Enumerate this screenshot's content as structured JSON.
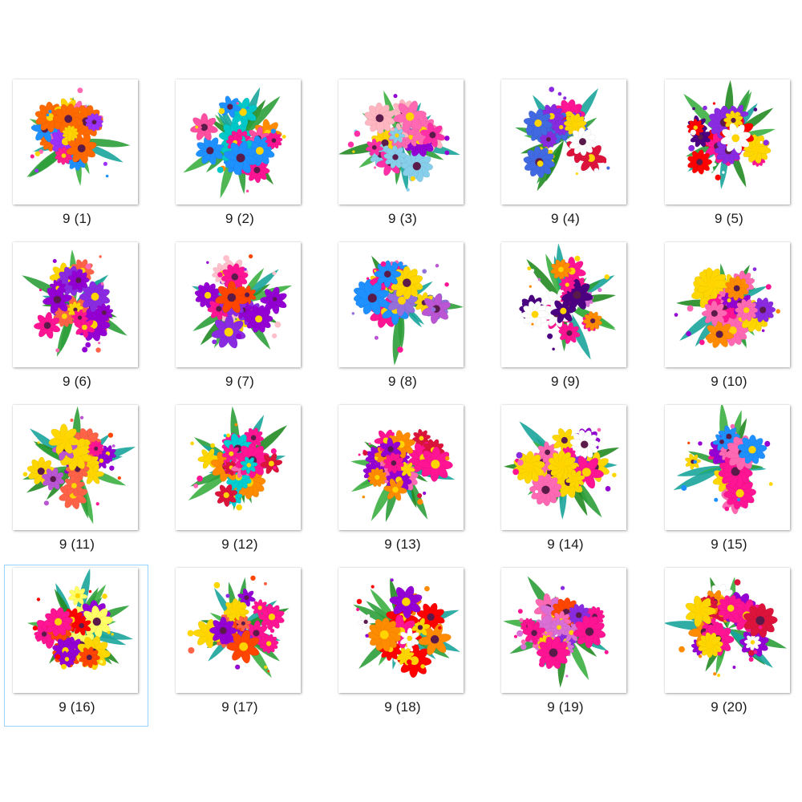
{
  "files": [
    {
      "name": "9 (1)",
      "palette": [
        "#ff1f8e",
        "#ffd400",
        "#1e90ff",
        "#9b30ff",
        "#ff6a00",
        "#ff69b4"
      ]
    },
    {
      "name": "9 (2)",
      "palette": [
        "#ff1493",
        "#ffd700",
        "#1e90ff",
        "#ff8c00",
        "#00c8c8",
        "#ff4fa0"
      ]
    },
    {
      "name": "9 (3)",
      "palette": [
        "#ff2fa8",
        "#ffd400",
        "#87ceeb",
        "#ff69b4",
        "#ffb6c1",
        "#9400d3"
      ]
    },
    {
      "name": "9 (4)",
      "palette": [
        "#8a2be2",
        "#ffd700",
        "#ff1493",
        "#dc143c",
        "#4169e1",
        "#ffffff"
      ]
    },
    {
      "name": "9 (5)",
      "palette": [
        "#ff0000",
        "#ffd700",
        "#8a2be2",
        "#ff1493",
        "#4b0082",
        "#ffffff"
      ]
    },
    {
      "name": "9 (6)",
      "palette": [
        "#9400d3",
        "#ffd700",
        "#ff1493",
        "#ff6347",
        "#8a2be2",
        "#ff69b4"
      ]
    },
    {
      "name": "9 (7)",
      "palette": [
        "#ff1493",
        "#9400d3",
        "#ffd700",
        "#ff4500",
        "#8a2be2",
        "#ffc0cb"
      ]
    },
    {
      "name": "9 (8)",
      "palette": [
        "#ff1493",
        "#ffd700",
        "#1e90ff",
        "#ba55d3",
        "#ff69b4",
        "#9370db"
      ]
    },
    {
      "name": "9 (9)",
      "palette": [
        "#ff1493",
        "#ffd700",
        "#4b0082",
        "#ff8c00",
        "#ffffff",
        "#da70d6"
      ]
    },
    {
      "name": "9 (10)",
      "palette": [
        "#9400d3",
        "#ffd700",
        "#ff1493",
        "#ff8c00",
        "#8a2be2",
        "#ff69b4"
      ]
    },
    {
      "name": "9 (11)",
      "palette": [
        "#ff1493",
        "#ffd700",
        "#9400d3",
        "#ff4500",
        "#ba55d3",
        "#ff6347"
      ]
    },
    {
      "name": "9 (12)",
      "palette": [
        "#ff1493",
        "#ffd700",
        "#ff8c00",
        "#00ced1",
        "#ff69b4",
        "#dc143c"
      ]
    },
    {
      "name": "9 (13)",
      "palette": [
        "#ff1493",
        "#ffd700",
        "#dc143c",
        "#ff69b4",
        "#9400d3",
        "#ff8c00"
      ]
    },
    {
      "name": "9 (14)",
      "palette": [
        "#ff1493",
        "#ffd700",
        "#8a2be2",
        "#ff69b4",
        "#ffffff",
        "#9400d3"
      ]
    },
    {
      "name": "9 (15)",
      "palette": [
        "#ff1493",
        "#ffd700",
        "#1e90ff",
        "#ff69b4",
        "#9400d3",
        "#ff4500"
      ]
    },
    {
      "name": "9 (16)",
      "palette": [
        "#ffd700",
        "#ff1493",
        "#ff0000",
        "#9400d3",
        "#ffff66",
        "#ff4500"
      ]
    },
    {
      "name": "9 (17)",
      "palette": [
        "#ff4500",
        "#9400d3",
        "#ff1493",
        "#ffd700",
        "#ff6347",
        "#8a2be2"
      ]
    },
    {
      "name": "9 (18)",
      "palette": [
        "#ff1493",
        "#ffd700",
        "#ff0000",
        "#9400d3",
        "#ffffff",
        "#ff8c00"
      ]
    },
    {
      "name": "9 (19)",
      "palette": [
        "#ff1493",
        "#ffd700",
        "#8a2be2",
        "#ff69b4",
        "#ff4500",
        "#da70d6"
      ]
    },
    {
      "name": "9 (20)",
      "palette": [
        "#ff1493",
        "#ffd700",
        "#9400d3",
        "#ff8c00",
        "#ffffff",
        "#dc143c"
      ]
    }
  ],
  "selected_file": "9 (16)",
  "colors": {
    "selection_border": "#99d1ff",
    "leaf_green": "#2e9e3a",
    "leaf_teal": "#1aa59b"
  }
}
